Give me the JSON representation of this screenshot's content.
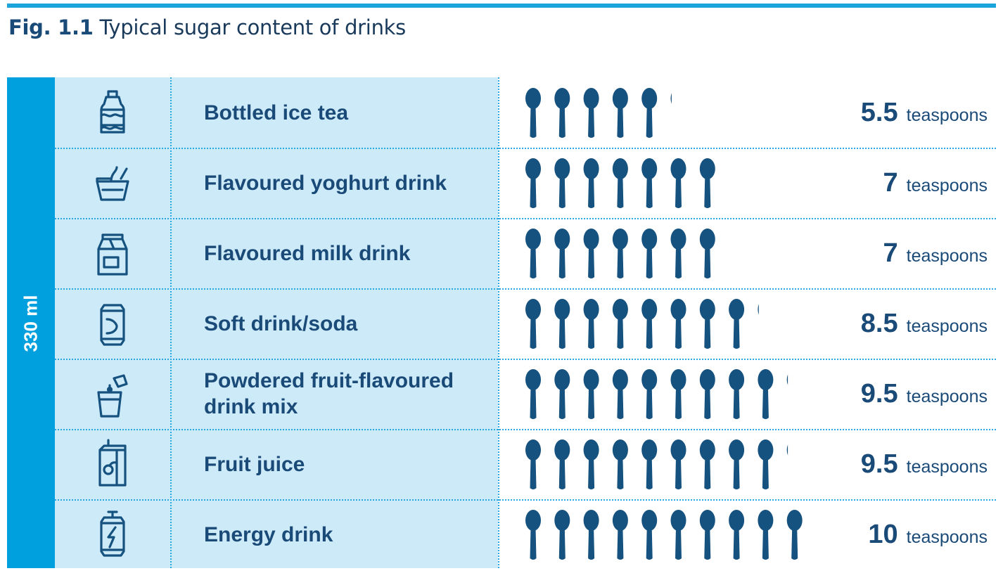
{
  "figure": {
    "label": "Fig. 1.1",
    "title": "Typical sugar content of drinks"
  },
  "volume_label": "330 ml",
  "colors": {
    "accent": "#00a0de",
    "row_background": "#cdeaf8",
    "text": "#1a4a78",
    "spoon": "#16527f"
  },
  "chart_data": {
    "type": "table",
    "title": "Typical sugar content of drinks",
    "unit": "teaspoons",
    "categories": [
      "Bottled ice tea",
      "Flavoured yoghurt drink",
      "Flavoured milk drink",
      "Soft drink/soda",
      "Powdered fruit-flavoured drink mix",
      "Fruit juice",
      "Energy drink"
    ],
    "values": [
      5.5,
      7,
      7,
      8.5,
      9.5,
      9.5,
      10
    ],
    "rows": [
      {
        "icon": "bottle-icon",
        "label": "Bottled ice tea",
        "value": 5.5,
        "value_text": "5.5",
        "unit": "teaspoons"
      },
      {
        "icon": "yoghurt-cup-icon",
        "label": "Flavoured yoghurt drink",
        "value": 7,
        "value_text": "7",
        "unit": "teaspoons"
      },
      {
        "icon": "milk-carton-icon",
        "label": "Flavoured milk drink",
        "value": 7,
        "value_text": "7",
        "unit": "teaspoons"
      },
      {
        "icon": "soda-can-icon",
        "label": "Soft drink/soda",
        "value": 8.5,
        "value_text": "8.5",
        "unit": "teaspoons"
      },
      {
        "icon": "glass-sachet-icon",
        "label": "Powdered fruit-flavoured drink mix",
        "value": 9.5,
        "value_text": "9.5",
        "unit": "teaspoons"
      },
      {
        "icon": "juice-box-icon",
        "label": "Fruit juice",
        "value": 9.5,
        "value_text": "9.5",
        "unit": "teaspoons"
      },
      {
        "icon": "energy-can-icon",
        "label": "Energy drink",
        "value": 10,
        "value_text": "10",
        "unit": "teaspoons"
      }
    ]
  }
}
